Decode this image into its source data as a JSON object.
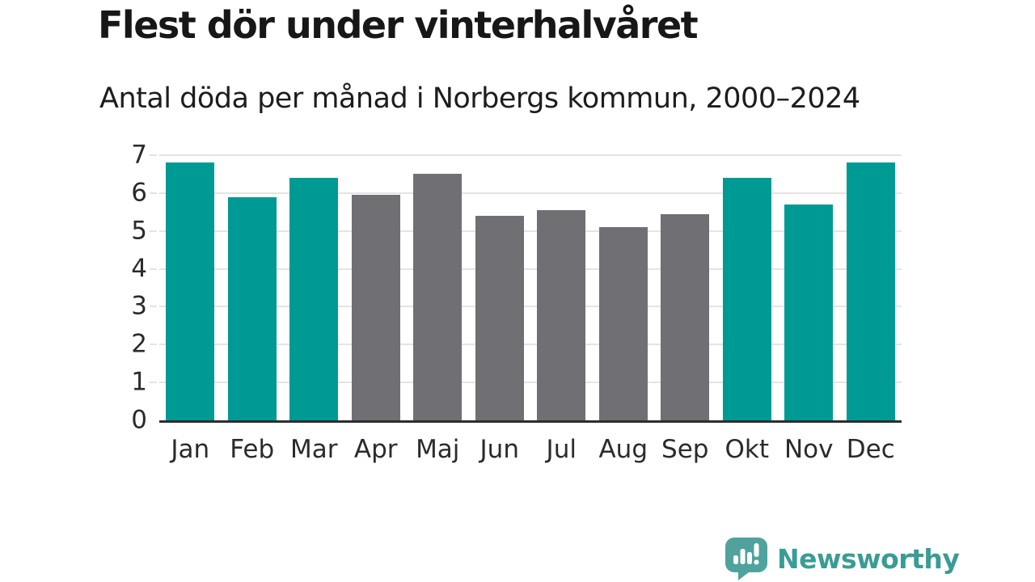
{
  "title": "Flest dör under vinterhalvåret",
  "subtitle": "Antal döda per månad i Norbergs kommun, 2000–2024",
  "colors": {
    "winter_bar": "#009a94",
    "summer_bar": "#6f6f74",
    "gridline": "#e4e4e4",
    "axis_line": "#2d2d2d",
    "logo_bubble": "#4fa39c",
    "logo_text": "#3a9c95",
    "title_text": "#171717",
    "axis_label_text": "#2b2b2b"
  },
  "chart_data": {
    "type": "bar",
    "title": "Flest dör under vinterhalvåret",
    "subtitle": "Antal döda per månad i Norbergs kommun, 2000–2024",
    "categories": [
      "Jan",
      "Feb",
      "Mar",
      "Apr",
      "Maj",
      "Jun",
      "Jul",
      "Aug",
      "Sep",
      "Okt",
      "Nov",
      "Dec"
    ],
    "values": [
      6.8,
      5.9,
      6.4,
      5.95,
      6.5,
      5.4,
      5.55,
      5.1,
      5.45,
      6.4,
      5.7,
      6.8
    ],
    "bar_groups": [
      "winter",
      "winter",
      "winter",
      "summer",
      "summer",
      "summer",
      "summer",
      "summer",
      "summer",
      "winter",
      "winter",
      "winter"
    ],
    "xlabel": "",
    "ylabel": "",
    "ylim": [
      0,
      7
    ],
    "yticks": [
      0,
      1,
      2,
      3,
      4,
      5,
      6,
      7
    ],
    "grid": true,
    "legend": false
  },
  "branding": {
    "logo_text": "Newsworthy",
    "logo_icon": "bar-chart-speech-bubble-icon"
  }
}
